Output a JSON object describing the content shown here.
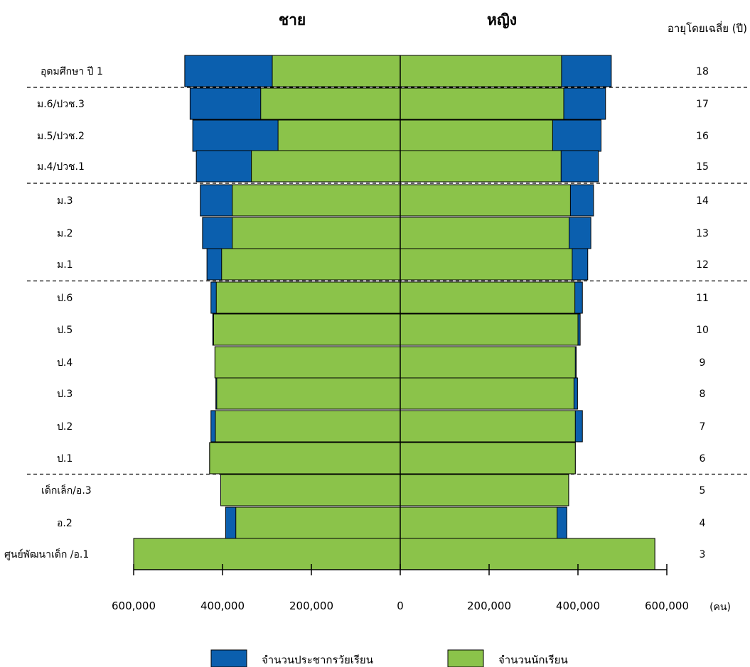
{
  "chart_data": {
    "type": "bar",
    "orientation": "horizontal-population-pyramid",
    "left_heading": "ชาย",
    "right_heading": "หญิง",
    "age_label": "อายุโดยเฉลี่ย (ปี)",
    "unit_label": "(คน)",
    "xlim": [
      -600000,
      600000
    ],
    "x_ticks": [
      -600000,
      -400000,
      -200000,
      0,
      200000,
      400000,
      600000
    ],
    "x_tick_labels": [
      "600,000",
      "400,000",
      "200,000",
      "0",
      "200,000",
      "400,000",
      "600,000"
    ],
    "categories": [
      "อุดมศึกษา ปี 1",
      "ม.6/ปวช.3",
      "ม.5/ปวช.2",
      "ม.4/ปวช.1",
      "ม.3",
      "ม.2",
      "ม.1",
      "ป.6",
      "ป.5",
      "ป.4",
      "ป.3",
      "ป.2",
      "ป.1",
      "เด็กเล็ก/อ.3",
      "อ.2",
      "ศูนย์พัฒนาเด็ก /อ.1"
    ],
    "ages": [
      "18",
      "17",
      "16",
      "15",
      "14",
      "13",
      "12",
      "11",
      "10",
      "9",
      "8",
      "7",
      "6",
      "5",
      "4",
      "3"
    ],
    "group_separators_after": [
      0,
      3,
      6,
      12
    ],
    "series": [
      {
        "name": "จำนวนประชากรวัยเรียน",
        "color": "#0b5fae",
        "male": [
          485000,
          473000,
          467000,
          459000,
          450000,
          445000,
          435000,
          426000,
          422000,
          417000,
          415000,
          426000,
          429000,
          404000,
          393000,
          600000
        ],
        "female": [
          475000,
          462000,
          452000,
          446000,
          435000,
          429000,
          422000,
          410000,
          405000,
          396000,
          399000,
          410000,
          394000,
          379000,
          375000,
          573000
        ]
      },
      {
        "name": "จำนวนนักเรียน",
        "color": "#8bc34a",
        "male": [
          288000,
          314000,
          275000,
          335000,
          378000,
          378000,
          402000,
          414000,
          420000,
          417000,
          413000,
          416000,
          429000,
          404000,
          370000,
          600000
        ],
        "female": [
          363000,
          368000,
          343000,
          362000,
          383000,
          380000,
          387000,
          393000,
          400000,
          394000,
          391000,
          394000,
          394000,
          379000,
          353000,
          573000
        ]
      }
    ],
    "legend_position": "bottom"
  }
}
